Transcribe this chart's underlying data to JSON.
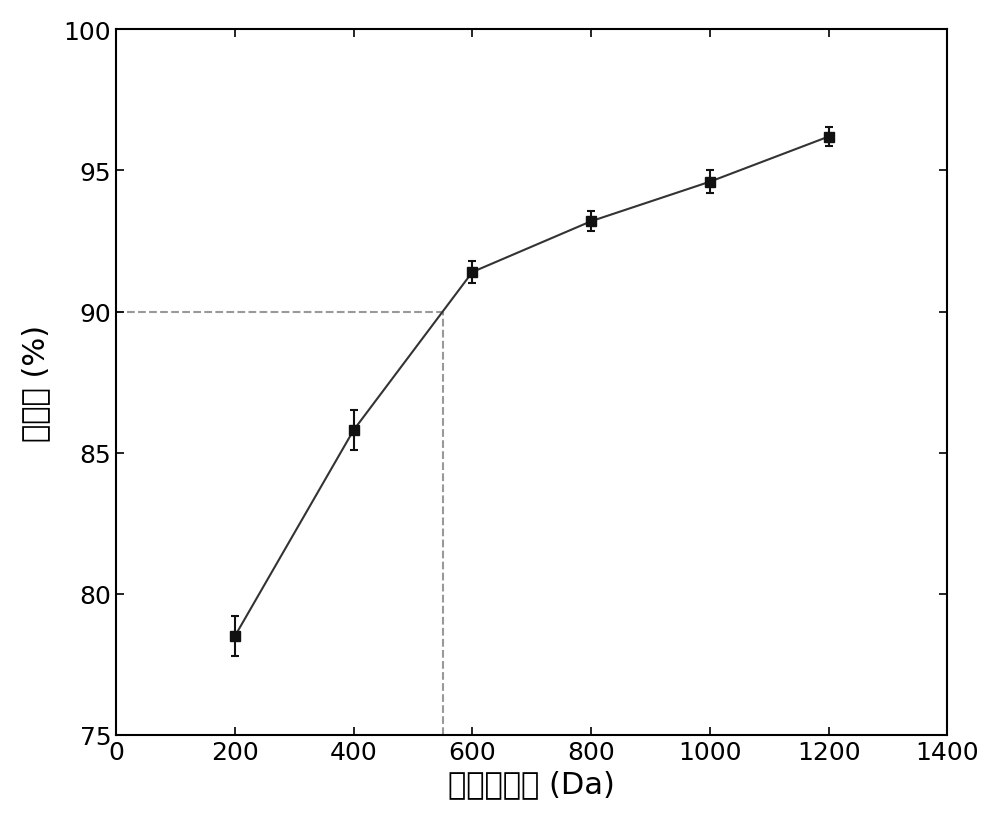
{
  "x": [
    200,
    400,
    600,
    800,
    1000,
    1200
  ],
  "y": [
    78.5,
    85.8,
    91.4,
    93.2,
    94.6,
    96.2
  ],
  "yerr": [
    0.7,
    0.7,
    0.4,
    0.35,
    0.4,
    0.35
  ],
  "xlabel": "截留分子量 (Da)",
  "ylabel": "截留率 (%)",
  "xlim": [
    0,
    1400
  ],
  "ylim": [
    75,
    100
  ],
  "xticks": [
    0,
    200,
    400,
    600,
    800,
    1000,
    1200,
    1400
  ],
  "yticks": [
    75,
    80,
    85,
    90,
    95,
    100
  ],
  "dashed_x": 550,
  "dashed_y": 90.0,
  "line_color": "#333333",
  "marker": "s",
  "marker_size": 7,
  "marker_color": "#111111",
  "dashed_color": "#999999",
  "xlabel_fontsize": 22,
  "ylabel_fontsize": 22,
  "tick_fontsize": 18,
  "figsize": [
    10.0,
    8.2
  ],
  "dpi": 100
}
